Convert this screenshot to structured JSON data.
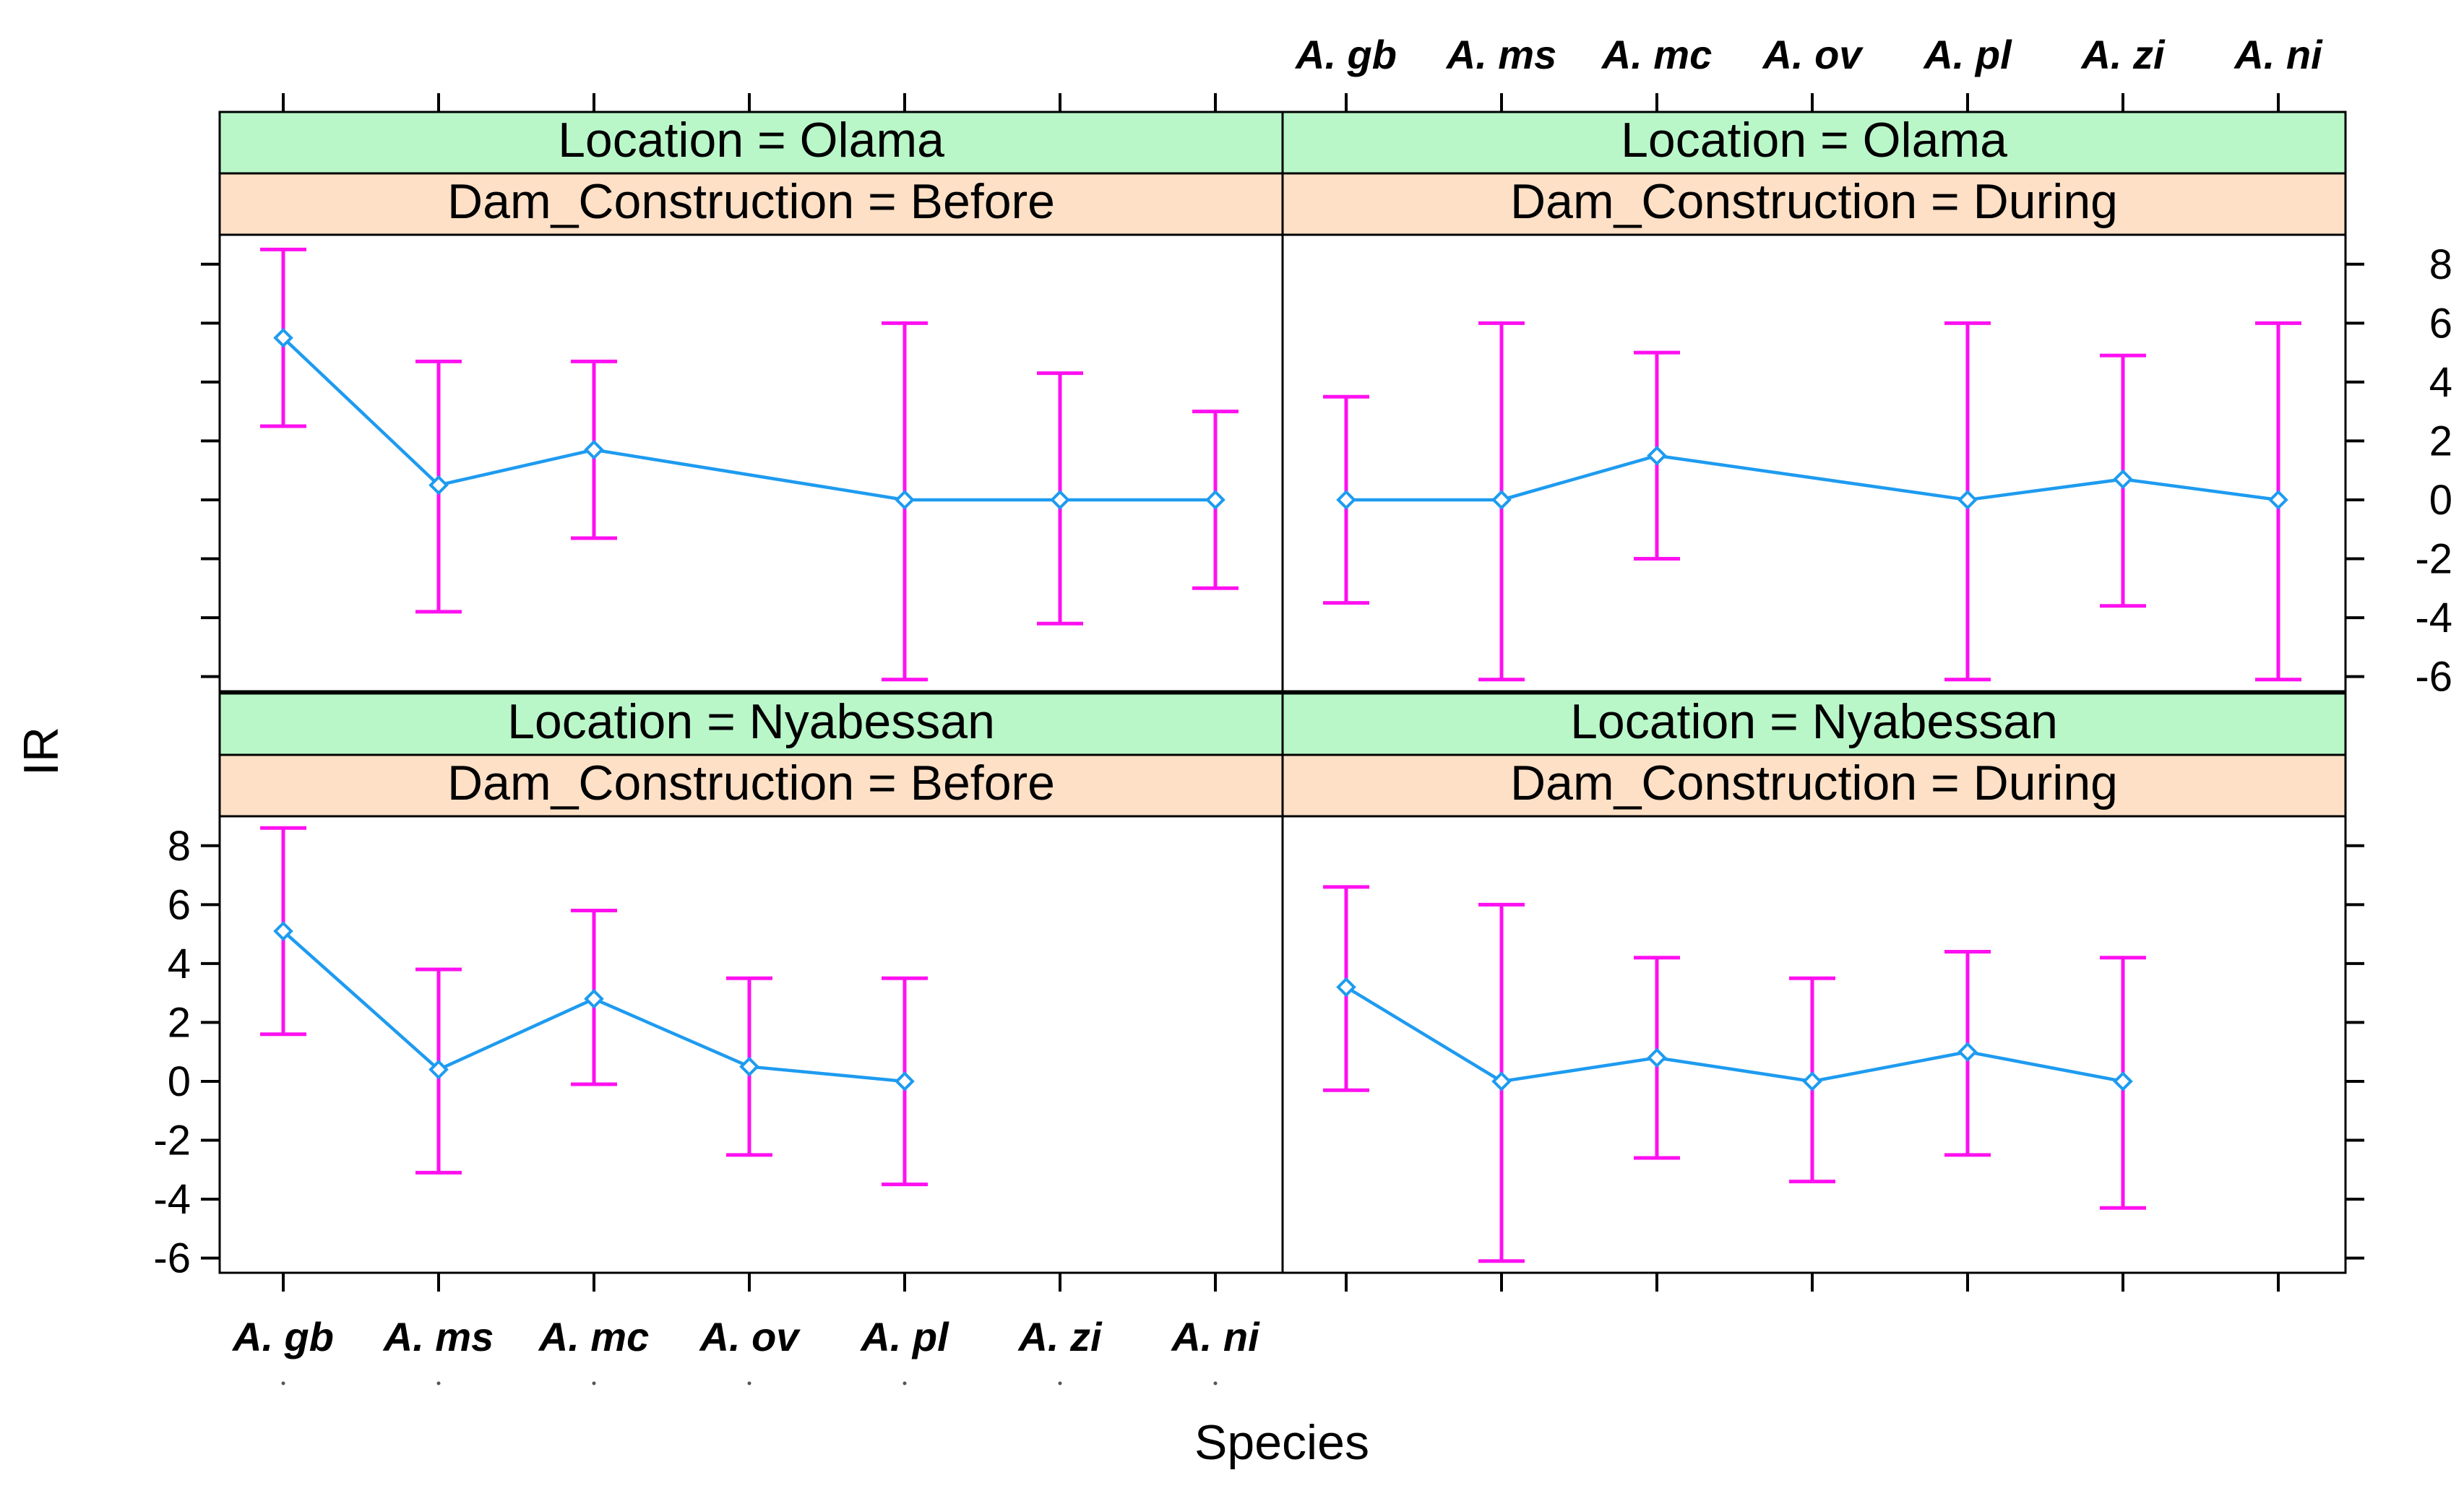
{
  "chart_data": {
    "type": "line",
    "xlabel": "Species",
    "ylabel": "IR",
    "categories": [
      "A. gb",
      "A. ms",
      "A. mc",
      "A. ov",
      "A. pl",
      "A. zi",
      "A. ni"
    ],
    "y_ticks": [
      "8",
      "6",
      "4",
      "2",
      "0",
      "-2",
      "-4",
      "-6"
    ],
    "ylim": [
      -6.5,
      9
    ],
    "colors": {
      "line": "#1e9bf0",
      "error_bar": "#ff10f0",
      "strip_location": "#b9f7c9",
      "strip_dam": "#fde0c6"
    },
    "panels": [
      {
        "location_label": "Location = Olama",
        "dam_label": "Dam_Construction = Before",
        "points": [
          {
            "category": "A. gb",
            "value": 5.5,
            "lower": 2.5,
            "upper": 8.5
          },
          {
            "category": "A. ms",
            "value": 0.5,
            "lower": -3.8,
            "upper": 4.7
          },
          {
            "category": "A. mc",
            "value": 1.7,
            "lower": -1.3,
            "upper": 4.7
          },
          {
            "category": "A. pl",
            "value": 0.0,
            "lower": -6.1,
            "upper": 6.0
          },
          {
            "category": "A. zi",
            "value": 0.0,
            "lower": -4.2,
            "upper": 4.3
          },
          {
            "category": "A. ni",
            "value": 0.0,
            "lower": -3.0,
            "upper": 3.0
          }
        ]
      },
      {
        "location_label": "Location = Olama",
        "dam_label": "Dam_Construction = During",
        "points": [
          {
            "category": "A. gb",
            "value": 0.0,
            "lower": -3.5,
            "upper": 3.5
          },
          {
            "category": "A. ms",
            "value": 0.0,
            "lower": -6.1,
            "upper": 6.0
          },
          {
            "category": "A. mc",
            "value": 1.5,
            "lower": -2.0,
            "upper": 5.0
          },
          {
            "category": "A. pl",
            "value": 0.0,
            "lower": -6.1,
            "upper": 6.0
          },
          {
            "category": "A. zi",
            "value": 0.7,
            "lower": -3.6,
            "upper": 4.9
          },
          {
            "category": "A. ni",
            "value": 0.0,
            "lower": -6.1,
            "upper": 6.0
          }
        ]
      },
      {
        "location_label": "Location = Nyabessan",
        "dam_label": "Dam_Construction = Before",
        "points": [
          {
            "category": "A. gb",
            "value": 5.1,
            "lower": 1.6,
            "upper": 8.6
          },
          {
            "category": "A. ms",
            "value": 0.4,
            "lower": -3.1,
            "upper": 3.8
          },
          {
            "category": "A. mc",
            "value": 2.8,
            "lower": -0.1,
            "upper": 5.8
          },
          {
            "category": "A. ov",
            "value": 0.5,
            "lower": -2.5,
            "upper": 3.5
          },
          {
            "category": "A. pl",
            "value": 0.0,
            "lower": -3.5,
            "upper": 3.5
          }
        ]
      },
      {
        "location_label": "Location = Nyabessan",
        "dam_label": "Dam_Construction = During",
        "points": [
          {
            "category": "A. gb",
            "value": 3.2,
            "lower": -0.3,
            "upper": 6.6
          },
          {
            "category": "A. ms",
            "value": 0.0,
            "lower": -6.1,
            "upper": 6.0
          },
          {
            "category": "A. mc",
            "value": 0.8,
            "lower": -2.6,
            "upper": 4.2
          },
          {
            "category": "A. ov",
            "value": 0.0,
            "lower": -3.4,
            "upper": 3.5
          },
          {
            "category": "A. pl",
            "value": 1.0,
            "lower": -2.5,
            "upper": 4.4
          },
          {
            "category": "A. zi",
            "value": 0.0,
            "lower": -4.3,
            "upper": 4.2
          }
        ]
      }
    ]
  }
}
